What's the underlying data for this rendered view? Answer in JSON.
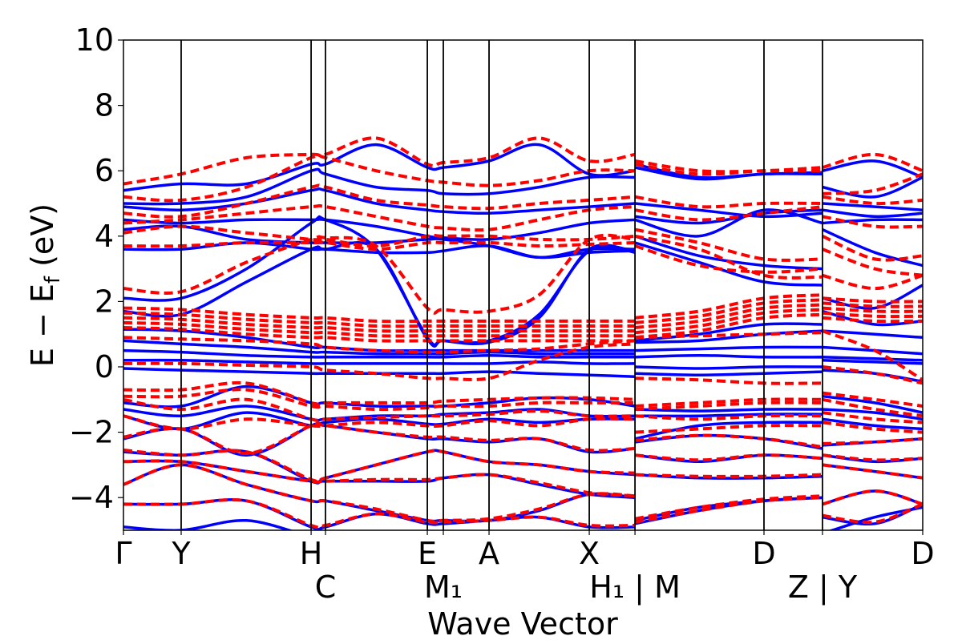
{
  "chart_data": {
    "type": "line",
    "title": "",
    "xlabel": "Wave Vector",
    "ylabel": {
      "main": "E − E",
      "sub": "f",
      "unit": " (eV)"
    },
    "ylim": [
      -5,
      10
    ],
    "yticks": [
      -4,
      -2,
      0,
      2,
      4,
      6,
      8,
      10
    ],
    "ytick_labels": [
      "−4",
      "−2",
      "0",
      "2",
      "4",
      "6",
      "8",
      "10"
    ],
    "grid": false,
    "legend": "none",
    "colors": {
      "blue": "#0000ff",
      "red": "#ff0000"
    },
    "xticks": [
      {
        "k": 0,
        "label": "Γ"
      },
      {
        "k": 0.361,
        "label": "Y"
      },
      {
        "k": 1.174,
        "label": "H"
      },
      {
        "k": 1.264,
        "label": "C"
      },
      {
        "k": 1.901,
        "label": "E"
      },
      {
        "k": 2.001,
        "label": "M₁"
      },
      {
        "k": 2.287,
        "label": "A"
      },
      {
        "k": 2.914,
        "label": "X"
      },
      {
        "k": 3.2,
        "label": "H₁ | M"
      },
      {
        "k": 4.007,
        "label": "D"
      },
      {
        "k": 4.373,
        "label": "Z | Y"
      },
      {
        "k": 5.0,
        "label": "D"
      }
    ],
    "k": [
      0,
      0.361,
      0.77,
      1.174,
      1.264,
      1.58,
      1.901,
      2.001,
      2.287,
      2.6,
      2.914,
      3.2,
      null,
      3.2,
      3.6,
      4.007,
      4.373,
      null,
      4.373,
      4.7,
      5.0
    ],
    "series": [
      {
        "style": "solid-blue",
        "bands": [
          [
            5.4,
            5.6,
            5.6,
            6.2,
            6.2,
            6.8,
            6.1,
            6.1,
            6.3,
            6.8,
            5.9,
            6.0,
            null,
            6.2,
            5.8,
            5.9,
            5.95,
            null,
            6.0,
            6.3,
            5.8
          ],
          [
            5.0,
            5.0,
            5.2,
            6.0,
            5.9,
            5.5,
            5.4,
            5.3,
            5.3,
            5.5,
            5.8,
            5.8,
            null,
            6.1,
            5.75,
            5.9,
            5.9,
            null,
            5.5,
            5.2,
            5.8
          ],
          [
            4.9,
            4.8,
            5.0,
            5.4,
            5.4,
            5.0,
            4.8,
            4.75,
            4.7,
            4.8,
            4.9,
            5.0,
            null,
            5.0,
            4.8,
            4.6,
            4.7,
            null,
            5.0,
            4.9,
            4.8
          ],
          [
            4.5,
            4.4,
            4.5,
            4.5,
            4.5,
            4.3,
            4.0,
            3.95,
            3.9,
            4.1,
            4.4,
            4.5,
            null,
            4.6,
            4.4,
            4.7,
            4.8,
            null,
            4.8,
            4.6,
            4.7
          ],
          [
            4.2,
            4.3,
            3.9,
            3.8,
            3.8,
            3.8,
            3.9,
            3.9,
            3.7,
            3.35,
            3.6,
            3.6,
            null,
            4.5,
            4.0,
            4.8,
            4.4,
            null,
            4.4,
            4.5,
            4.5
          ],
          [
            3.6,
            3.6,
            3.8,
            3.6,
            3.6,
            3.5,
            3.5,
            3.55,
            3.7,
            3.35,
            3.5,
            3.55,
            null,
            4.0,
            3.4,
            3.1,
            3.0,
            null,
            4.2,
            3.5,
            3.1
          ],
          [
            2.1,
            2.1,
            3.0,
            4.4,
            4.5,
            3.6,
            0.9,
            0.8,
            0.75,
            1.5,
            3.6,
            3.5,
            null,
            3.8,
            3.2,
            2.6,
            2.5,
            null,
            2.1,
            1.8,
            2.5
          ],
          [
            1.7,
            1.6,
            2.6,
            3.6,
            3.6,
            3.6,
            0.85,
            0.8,
            0.8,
            1.6,
            3.55,
            3.55,
            null,
            0.8,
            1.0,
            1.3,
            1.3,
            null,
            1.7,
            1.3,
            1.4
          ],
          [
            1.15,
            1.1,
            0.9,
            0.6,
            0.6,
            0.5,
            0.5,
            0.5,
            0.5,
            0.5,
            0.5,
            0.5,
            null,
            0.75,
            0.8,
            1.0,
            1.1,
            null,
            1.1,
            1.0,
            0.9
          ],
          [
            0.8,
            0.7,
            0.6,
            0.45,
            0.45,
            0.4,
            0.4,
            0.4,
            0.45,
            0.4,
            0.4,
            0.4,
            null,
            0.5,
            0.55,
            0.6,
            0.6,
            null,
            0.6,
            0.5,
            0.4
          ],
          [
            0.5,
            0.45,
            0.35,
            0.3,
            0.3,
            0.3,
            0.3,
            0.3,
            0.35,
            0.3,
            0.3,
            0.3,
            null,
            0.3,
            0.35,
            0.3,
            0.3,
            null,
            0.3,
            0.25,
            0.2
          ],
          [
            0.2,
            0.2,
            0.15,
            0.1,
            0.1,
            0.1,
            0.1,
            0.1,
            0.1,
            0.15,
            0.1,
            0.1,
            null,
            0.0,
            -0.05,
            0.0,
            0.0,
            null,
            0.2,
            0.15,
            0.1
          ],
          [
            -0.05,
            -0.1,
            -0.15,
            -0.2,
            -0.2,
            -0.2,
            -0.2,
            -0.2,
            -0.15,
            -0.2,
            -0.25,
            -0.3,
            null,
            -0.2,
            -0.25,
            -0.2,
            -0.15,
            null,
            -0.1,
            -0.2,
            -0.45
          ],
          [
            -1.1,
            -1.2,
            -0.6,
            -1.1,
            -1.1,
            -1.2,
            -1.2,
            -1.2,
            -1.1,
            -0.95,
            -1.0,
            -1.2,
            null,
            -1.3,
            -1.35,
            -1.3,
            -1.3,
            null,
            -0.9,
            -1.1,
            -1.4
          ],
          [
            -1.3,
            -1.5,
            -1.2,
            -1.6,
            -1.6,
            -1.5,
            -1.5,
            -1.45,
            -1.4,
            -1.3,
            -1.5,
            -1.5,
            null,
            -1.5,
            -1.5,
            -1.45,
            -1.45,
            null,
            -1.3,
            -1.4,
            -1.6
          ],
          [
            -1.5,
            -1.9,
            -1.4,
            -1.8,
            -1.7,
            -1.6,
            -1.75,
            -1.75,
            -1.6,
            -1.7,
            -1.6,
            -1.6,
            null,
            -2.2,
            -1.8,
            -1.7,
            -1.7,
            null,
            -1.6,
            -1.8,
            -1.9
          ],
          [
            -2.2,
            -1.9,
            -2.7,
            -1.8,
            -1.8,
            -2.0,
            -2.2,
            -2.2,
            -2.3,
            -2.2,
            -2.6,
            -2.5,
            null,
            -2.3,
            -2.1,
            -2.2,
            -2.5,
            null,
            -2.4,
            -2.3,
            -2.2
          ],
          [
            -2.6,
            -2.7,
            -2.6,
            -3.5,
            -3.4,
            -3.0,
            -2.6,
            -2.6,
            -2.9,
            -3.0,
            -3.2,
            -3.3,
            null,
            -2.7,
            -2.9,
            -2.7,
            -2.8,
            null,
            -2.7,
            -2.9,
            -2.8
          ],
          [
            -2.9,
            -2.9,
            -3.2,
            -3.5,
            -3.5,
            -3.5,
            -3.5,
            -3.4,
            -3.3,
            -3.6,
            -3.9,
            -4.0,
            null,
            -3.3,
            -3.4,
            -3.4,
            -3.35,
            null,
            -3.0,
            -3.2,
            -3.4
          ],
          [
            -3.6,
            -3.0,
            -3.6,
            -4.1,
            -4.1,
            -4.4,
            -4.7,
            -4.7,
            -4.7,
            -4.4,
            -3.9,
            -4.0,
            null,
            -4.7,
            -4.3,
            -4.1,
            -4.0,
            null,
            -4.2,
            -3.8,
            -4.2
          ],
          [
            -4.2,
            -4.2,
            -4.1,
            -4.9,
            -4.9,
            -4.5,
            -4.8,
            -4.8,
            -4.7,
            -4.6,
            -4.9,
            -4.9,
            null,
            -4.8,
            -4.4,
            -4.1,
            -4.0,
            null,
            -4.6,
            -4.8,
            -4.2
          ],
          [
            -4.9,
            -5.0,
            -4.7,
            -5.2,
            -5.2,
            -5.1,
            -5.2,
            -5.2,
            -5.1,
            -5.1,
            -5.2,
            -5.2,
            null,
            -5.2,
            -5.1,
            -5.1,
            -5.1,
            null,
            -5.1,
            -4.6,
            -4.3
          ]
        ]
      },
      {
        "style": "dashed-red",
        "bands": [
          [
            5.6,
            5.9,
            6.4,
            6.5,
            6.5,
            7.0,
            6.2,
            6.25,
            6.4,
            7.0,
            6.3,
            6.5,
            null,
            6.3,
            6.0,
            6.0,
            6.1,
            null,
            6.1,
            6.5,
            6.0
          ],
          [
            5.2,
            5.1,
            5.5,
            6.4,
            6.4,
            6.0,
            5.7,
            5.65,
            5.55,
            5.7,
            6.0,
            6.0,
            null,
            6.2,
            5.9,
            6.0,
            6.0,
            null,
            5.3,
            5.4,
            5.9
          ],
          [
            4.7,
            4.6,
            5.0,
            5.5,
            5.5,
            5.1,
            4.95,
            4.9,
            4.85,
            5.0,
            5.1,
            5.2,
            null,
            5.2,
            4.9,
            5.0,
            5.0,
            null,
            5.2,
            5.0,
            5.1
          ],
          [
            4.4,
            4.5,
            4.7,
            4.9,
            4.9,
            4.6,
            4.3,
            4.25,
            4.2,
            4.5,
            4.8,
            4.9,
            null,
            4.8,
            4.5,
            4.7,
            4.9,
            null,
            4.6,
            4.3,
            4.3
          ],
          [
            4.1,
            4.3,
            4.1,
            3.9,
            3.9,
            3.7,
            4.0,
            4.0,
            4.0,
            3.9,
            3.9,
            4.0,
            null,
            4.2,
            3.8,
            3.3,
            3.3,
            null,
            4.0,
            3.3,
            3.4
          ],
          [
            3.7,
            3.7,
            3.8,
            3.8,
            3.8,
            3.6,
            3.8,
            3.8,
            3.8,
            3.7,
            3.75,
            3.8,
            null,
            4.0,
            3.6,
            2.8,
            2.75,
            null,
            3.6,
            3.0,
            2.8
          ],
          [
            2.4,
            2.3,
            3.2,
            3.9,
            3.95,
            3.7,
            1.8,
            1.75,
            1.7,
            2.2,
            3.9,
            3.9,
            null,
            3.7,
            3.1,
            2.9,
            3.0,
            null,
            2.8,
            2.4,
            2.8
          ],
          [
            1.8,
            1.75,
            1.6,
            1.5,
            1.5,
            1.4,
            1.4,
            1.4,
            1.4,
            1.4,
            1.4,
            1.4,
            null,
            1.5,
            1.7,
            2.1,
            2.2,
            null,
            2.1,
            2.0,
            2.0
          ],
          [
            1.65,
            1.6,
            1.45,
            1.35,
            1.35,
            1.25,
            1.25,
            1.25,
            1.25,
            1.25,
            1.25,
            1.25,
            null,
            1.35,
            1.55,
            1.95,
            2.05,
            null,
            1.95,
            1.85,
            1.85
          ],
          [
            1.5,
            1.45,
            1.3,
            1.2,
            1.2,
            1.1,
            1.1,
            1.1,
            1.1,
            1.1,
            1.1,
            1.1,
            null,
            1.2,
            1.4,
            1.8,
            1.9,
            null,
            1.8,
            1.7,
            1.7
          ],
          [
            1.35,
            1.3,
            1.15,
            1.05,
            1.05,
            0.95,
            0.95,
            0.95,
            0.95,
            0.95,
            0.95,
            0.95,
            null,
            1.05,
            1.25,
            1.65,
            1.75,
            null,
            1.65,
            1.55,
            1.55
          ],
          [
            1.2,
            1.15,
            1.0,
            0.9,
            0.9,
            0.8,
            0.8,
            0.8,
            0.8,
            0.8,
            0.8,
            0.8,
            null,
            0.9,
            1.1,
            1.5,
            1.6,
            null,
            1.5,
            1.4,
            1.4
          ],
          [
            0.9,
            0.85,
            0.8,
            0.7,
            0.6,
            0.5,
            0.45,
            0.45,
            0.5,
            0.55,
            0.7,
            0.8,
            null,
            0.9,
            0.95,
            1.0,
            1.05,
            null,
            1.1,
            0.5,
            -0.4
          ],
          [
            0.1,
            0.1,
            0.05,
            0.0,
            -0.1,
            -0.2,
            -0.35,
            -0.35,
            -0.35,
            0.2,
            0.6,
            0.7,
            null,
            -0.35,
            -0.4,
            -0.5,
            -0.5,
            null,
            0.0,
            -0.2,
            -0.5
          ],
          [
            -0.7,
            -0.7,
            -0.5,
            -1.1,
            -1.1,
            -1.1,
            -1.1,
            -1.05,
            -1.0,
            -0.95,
            -0.95,
            -1.0,
            null,
            -1.2,
            -1.1,
            -1.0,
            -1.0,
            null,
            -0.8,
            -1.0,
            -1.2
          ],
          [
            -0.9,
            -0.9,
            -0.7,
            -1.2,
            -1.2,
            -1.3,
            -1.25,
            -1.2,
            -1.2,
            -1.1,
            -1.1,
            -1.1,
            null,
            -1.3,
            -1.2,
            -1.1,
            -1.1,
            null,
            -1.0,
            -1.3,
            -1.5
          ],
          [
            -1.0,
            -1.3,
            -1.0,
            -1.6,
            -1.6,
            -1.55,
            -1.5,
            -1.5,
            -1.45,
            -1.35,
            -1.5,
            -1.5,
            null,
            -1.5,
            -1.6,
            -1.5,
            -1.5,
            null,
            -1.4,
            -1.6,
            -1.7
          ],
          [
            -1.5,
            -1.9,
            -1.6,
            -1.8,
            -1.8,
            -1.7,
            -1.8,
            -1.8,
            -1.65,
            -1.8,
            -1.6,
            -1.6,
            null,
            -2.0,
            -1.9,
            -1.8,
            -1.8,
            null,
            -1.7,
            -1.9,
            -2.0
          ],
          [
            -2.15,
            -1.9,
            -2.65,
            -1.8,
            -1.8,
            -2.0,
            -2.15,
            -2.15,
            -2.25,
            -2.2,
            -2.55,
            -2.5,
            null,
            -2.25,
            -2.1,
            -2.2,
            -2.45,
            null,
            -2.35,
            -2.3,
            -2.2
          ],
          [
            -2.55,
            -2.7,
            -2.6,
            -3.45,
            -3.4,
            -3.0,
            -2.6,
            -2.6,
            -2.9,
            -3.0,
            -3.2,
            -3.25,
            null,
            -2.7,
            -2.85,
            -2.7,
            -2.8,
            null,
            -2.7,
            -2.85,
            -2.8
          ],
          [
            -2.9,
            -2.9,
            -3.2,
            -3.5,
            -3.5,
            -3.45,
            -3.45,
            -3.4,
            -3.3,
            -3.55,
            -3.85,
            -3.95,
            null,
            -3.3,
            -3.35,
            -3.35,
            -3.3,
            null,
            -3.0,
            -3.2,
            -3.4
          ],
          [
            -3.6,
            -3.0,
            -3.6,
            -4.1,
            -4.1,
            -4.35,
            -4.7,
            -4.7,
            -4.65,
            -4.35,
            -3.9,
            -3.95,
            null,
            -4.65,
            -4.3,
            -4.05,
            -3.95,
            null,
            -4.2,
            -3.8,
            -4.2
          ],
          [
            -4.2,
            -4.2,
            -4.1,
            -4.85,
            -4.85,
            -4.5,
            -4.75,
            -4.75,
            -4.7,
            -4.6,
            -4.85,
            -4.85,
            null,
            -4.75,
            -4.4,
            -4.1,
            -4.0,
            null,
            -4.55,
            -4.75,
            -4.2
          ]
        ]
      }
    ]
  }
}
